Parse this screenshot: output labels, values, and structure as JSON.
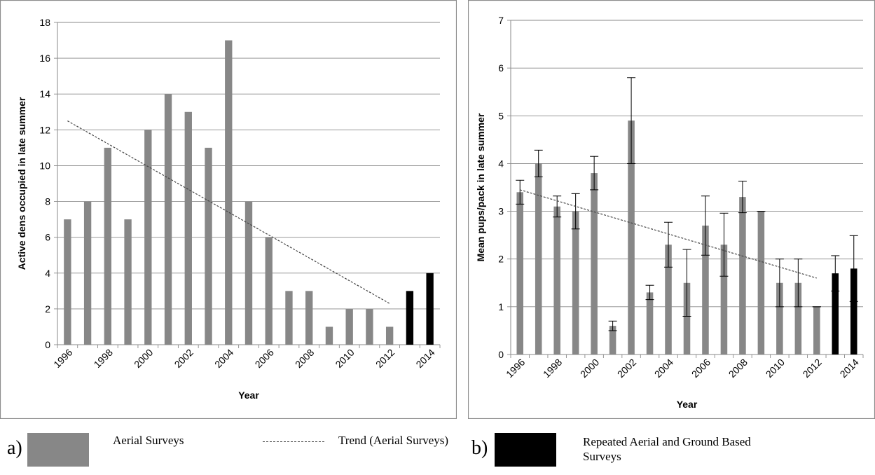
{
  "chart_data": [
    {
      "type": "bar",
      "panel": "a",
      "xlabel": "Year",
      "ylabel": "Active dens occupied in late summer",
      "ylim": [
        0,
        18
      ],
      "yticks": [
        "0",
        "2",
        "4",
        "6",
        "8",
        "10",
        "12",
        "14",
        "16",
        "18"
      ],
      "grid": true,
      "categories": [
        "1996",
        "1997",
        "1998",
        "1999",
        "2000",
        "2001",
        "2002",
        "2003",
        "2004",
        "2005",
        "2006",
        "2007",
        "2008",
        "2009",
        "2010",
        "2011",
        "2012",
        "2013",
        "2014"
      ],
      "xtick_labels": [
        "1996",
        "1998",
        "2000",
        "2002",
        "2004",
        "2006",
        "2008",
        "2010",
        "2012",
        "2014"
      ],
      "series": [
        {
          "name": "Aerial Surveys",
          "color": "#878787",
          "values": [
            7,
            8,
            11,
            7,
            12,
            14,
            13,
            11,
            17,
            8,
            6,
            3,
            3,
            1,
            2,
            2,
            1,
            null,
            null
          ]
        },
        {
          "name": "Repeated Aerial and Ground Based Surveys",
          "color": "#000000",
          "values": [
            null,
            null,
            null,
            null,
            null,
            null,
            null,
            null,
            null,
            null,
            null,
            null,
            null,
            null,
            null,
            null,
            null,
            3,
            4
          ]
        }
      ],
      "trend": {
        "name": "Trend (Aerial Surveys)",
        "x": [
          "1996",
          "2012"
        ],
        "y": [
          12.5,
          2.3
        ]
      }
    },
    {
      "type": "bar",
      "panel": "b",
      "xlabel": "Year",
      "ylabel": "Mean pups/pack in  late summer",
      "ylim": [
        0,
        7
      ],
      "yticks": [
        "0",
        "1",
        "2",
        "3",
        "4",
        "5",
        "6",
        "7"
      ],
      "grid": true,
      "categories": [
        "1996",
        "1997",
        "1998",
        "1999",
        "2000",
        "2001",
        "2002",
        "2003",
        "2004",
        "2005",
        "2006",
        "2007",
        "2008",
        "2009",
        "2010",
        "2011",
        "2012",
        "2013",
        "2014"
      ],
      "xtick_labels": [
        "1996",
        "1998",
        "2000",
        "2002",
        "2004",
        "2006",
        "2008",
        "2010",
        "2012",
        "2014"
      ],
      "series": [
        {
          "name": "Aerial Surveys",
          "color": "#878787",
          "values": [
            3.4,
            4.0,
            3.1,
            3.0,
            3.8,
            0.6,
            4.9,
            1.3,
            2.3,
            1.5,
            2.7,
            2.3,
            3.3,
            3.0,
            1.5,
            1.5,
            1.0,
            null,
            null
          ],
          "error": [
            0.25,
            0.28,
            0.22,
            0.37,
            0.35,
            0.1,
            0.9,
            0.15,
            0.47,
            0.7,
            0.62,
            0.66,
            0.33,
            0.0,
            0.5,
            0.5,
            0.0,
            null,
            null
          ]
        },
        {
          "name": "Repeated Aerial and Ground Based Surveys",
          "color": "#000000",
          "values": [
            null,
            null,
            null,
            null,
            null,
            null,
            null,
            null,
            null,
            null,
            null,
            null,
            null,
            null,
            null,
            null,
            null,
            1.7,
            1.8
          ],
          "error": [
            null,
            null,
            null,
            null,
            null,
            null,
            null,
            null,
            null,
            null,
            null,
            null,
            null,
            null,
            null,
            null,
            null,
            0.37,
            0.69
          ]
        }
      ],
      "trend": {
        "name": "Trend (Aerial Surveys)",
        "x": [
          "1996",
          "2012"
        ],
        "y": [
          3.45,
          1.6
        ]
      }
    }
  ],
  "legend": {
    "label_a": "a)",
    "label_b": "b)",
    "aerial": "Aerial Surveys",
    "trend": "Trend (Aerial Surveys)",
    "repeated": "Repeated Aerial and Ground Based Surveys",
    "colors": {
      "aerial": "#878787",
      "repeated": "#000000",
      "trend": "#444444"
    }
  }
}
